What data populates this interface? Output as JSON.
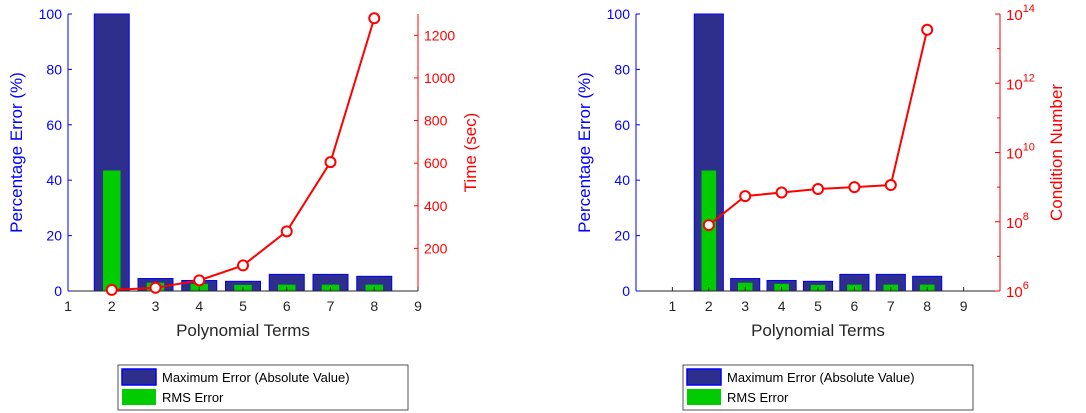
{
  "colors": {
    "left_axis": "#0000ff",
    "right_axis": "#ff0000",
    "max_bar_fill": "#2e2e8c",
    "max_bar_edge": "#0000ff",
    "rms_bar_fill": "#00cc00",
    "line": "#ff0000",
    "axis": "#262626"
  },
  "chart_data": [
    {
      "type": "bar",
      "xlabel": "Polynomial Terms",
      "ylabel": "Percentage Error (%)",
      "y2label": "Time (sec)",
      "xlim": [
        1,
        9
      ],
      "xticks": [
        "1",
        "2",
        "3",
        "4",
        "5",
        "6",
        "7",
        "8",
        "9"
      ],
      "ylim": [
        0,
        100
      ],
      "yticks": [
        "0",
        "20",
        "40",
        "60",
        "80",
        "100"
      ],
      "y2lim": [
        0,
        1300
      ],
      "y2scale": "linear",
      "y2ticks": [
        "200",
        "400",
        "600",
        "800",
        "1000",
        "1200"
      ],
      "x": [
        2,
        3,
        4,
        5,
        6,
        7,
        8
      ],
      "series": [
        {
          "name": "Maximum Error (Absolute Value)",
          "kind": "bar",
          "axis": "left",
          "values": [
            100,
            4.5,
            3.8,
            3.5,
            6,
            6,
            5.3
          ]
        },
        {
          "name": "RMS Error",
          "kind": "bar",
          "axis": "left",
          "values": [
            43.5,
            3.0,
            2.6,
            2.2,
            2.3,
            2.3,
            2.3
          ]
        },
        {
          "kind": "line",
          "axis": "right",
          "values": [
            5,
            15,
            50,
            120,
            280,
            605,
            1280
          ]
        }
      ],
      "legend": {
        "position": "below",
        "items": [
          "Maximum Error (Absolute Value)",
          "RMS Error"
        ]
      }
    },
    {
      "type": "bar",
      "xlabel": "Polynomial Terms",
      "ylabel": "Percentage Error (%)",
      "y2label": "Condition Number",
      "xlim": [
        0,
        10
      ],
      "xticks": [
        "1",
        "2",
        "3",
        "4",
        "5",
        "6",
        "7",
        "8",
        "9"
      ],
      "ylim": [
        0,
        100
      ],
      "yticks": [
        "0",
        "20",
        "40",
        "60",
        "80",
        "100"
      ],
      "y2lim_exp": [
        6,
        14
      ],
      "y2scale": "log",
      "y2ticks": [
        {
          "base": "10",
          "exp": "6"
        },
        {
          "base": "10",
          "exp": "8"
        },
        {
          "base": "10",
          "exp": "10"
        },
        {
          "base": "10",
          "exp": "12"
        },
        {
          "base": "10",
          "exp": "14"
        }
      ],
      "x": [
        2,
        3,
        4,
        5,
        6,
        7,
        8
      ],
      "series": [
        {
          "name": "Maximum Error (Absolute Value)",
          "kind": "bar",
          "axis": "left",
          "values": [
            100,
            4.5,
            3.8,
            3.5,
            6,
            6,
            5.3
          ]
        },
        {
          "name": "RMS Error",
          "kind": "bar",
          "axis": "left",
          "values": [
            43.5,
            3.0,
            2.6,
            2.2,
            2.3,
            2.3,
            2.3
          ]
        },
        {
          "kind": "line",
          "axis": "right",
          "values": [
            80000000,
            550000000,
            700000000,
            880000000,
            1000000000,
            1150000000,
            35000000000000
          ]
        }
      ],
      "legend": {
        "position": "below",
        "items": [
          "Maximum Error (Absolute Value)",
          "RMS Error"
        ]
      }
    }
  ]
}
